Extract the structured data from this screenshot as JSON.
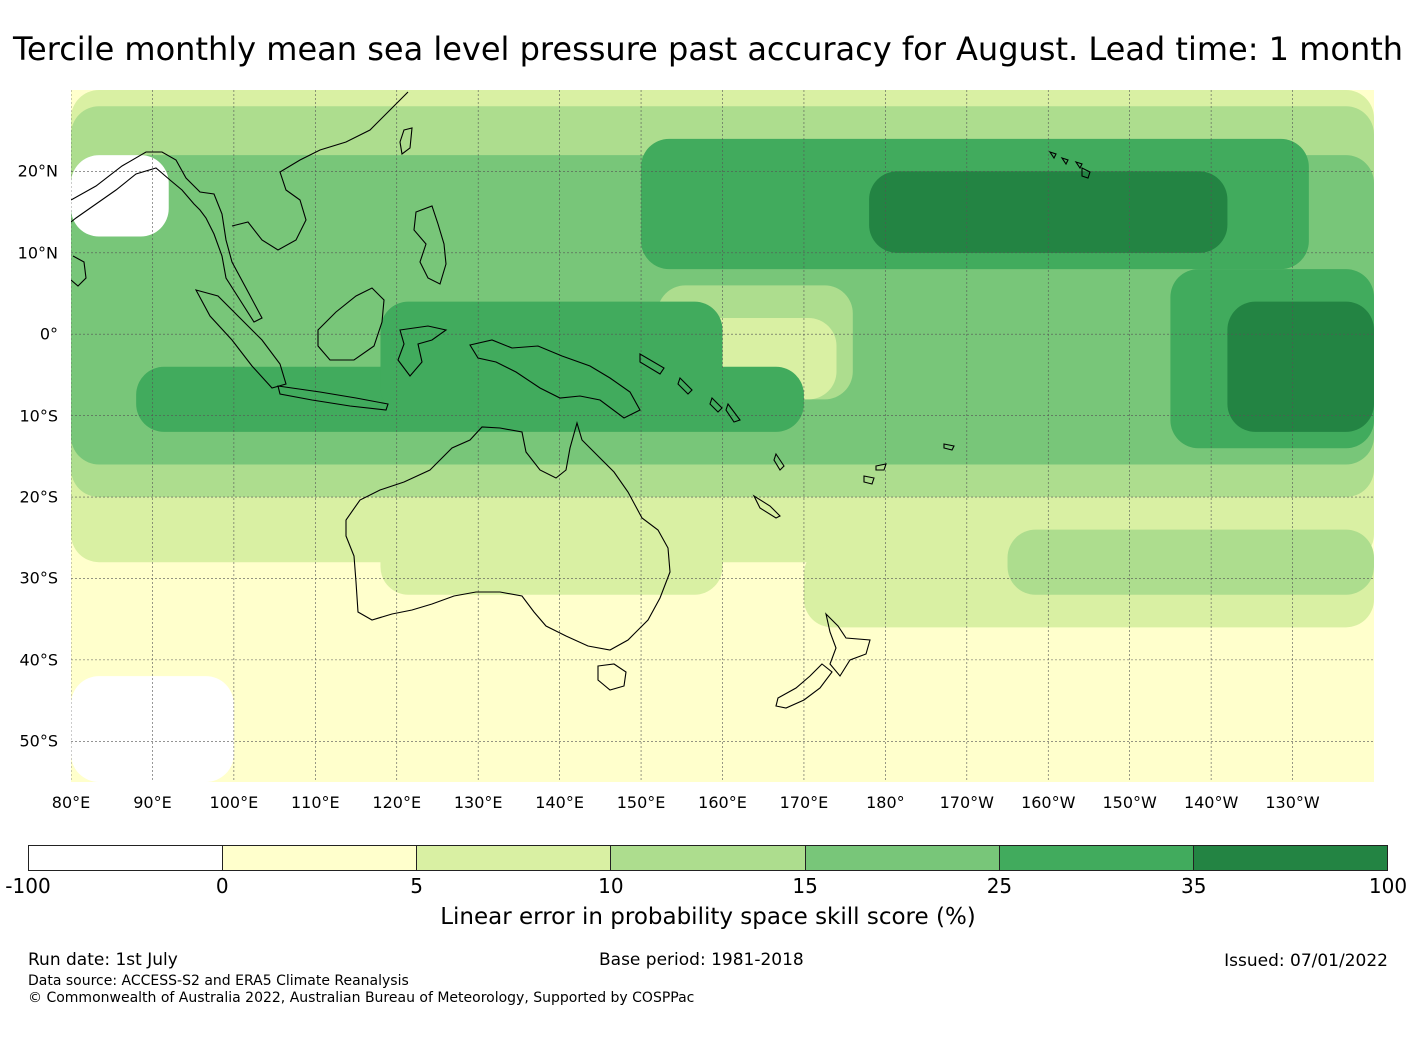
{
  "title": "Tercile monthly mean sea level pressure past accuracy for August. Lead time: 1 month",
  "map": {
    "lon_labels": [
      "80°E",
      "90°E",
      "100°E",
      "110°E",
      "120°E",
      "130°E",
      "140°E",
      "150°E",
      "160°E",
      "170°E",
      "180°",
      "170°W",
      "160°W",
      "150°W",
      "140°W",
      "130°W"
    ],
    "lat_labels": [
      "20°N",
      "10°N",
      "0°",
      "10°S",
      "20°S",
      "30°S",
      "40°S",
      "50°S"
    ],
    "lon_range_deg_east": [
      80,
      240
    ],
    "lat_range_deg": [
      -55,
      30
    ],
    "gridlines": true
  },
  "colorbar": {
    "ticks": [
      "-100",
      "0",
      "5",
      "10",
      "15",
      "25",
      "35",
      "100"
    ],
    "colors": [
      "#ffffff",
      "#ffffcc",
      "#d9f0a3",
      "#addd8e",
      "#78c679",
      "#41ab5d",
      "#238443"
    ],
    "label": "Linear error in probability space skill score (%)"
  },
  "footer": {
    "run_date": "Run date: 1st July",
    "base_period": "Base period: 1981-2018",
    "issued": "Issued: 07/01/2022",
    "data_source": "Data source: ACCESS-S2 and ERA5 Climate Reanalysis",
    "copyright": "© Commonwealth of Australia 2022, Australian Bureau of Meteorology, Supported by COSPPac"
  }
}
